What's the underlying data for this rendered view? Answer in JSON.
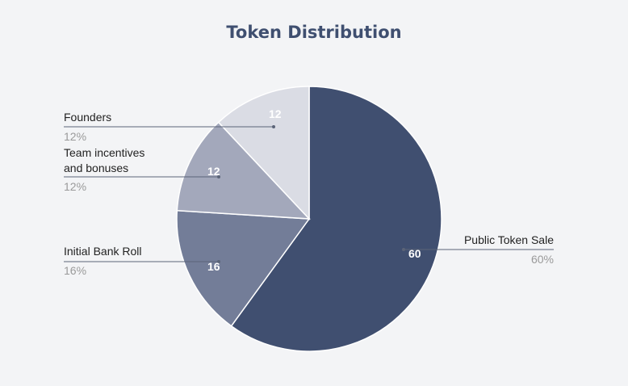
{
  "chart_data": {
    "type": "pie",
    "title": "Token Distribution",
    "start_angle_deg": 0,
    "direction": "clockwise",
    "slices": [
      {
        "label": "Public Token Sale",
        "value": 60,
        "value_text": "60",
        "percent_text": "60%",
        "color": "#404f70"
      },
      {
        "label": "Initial Bank Roll",
        "value": 16,
        "value_text": "16",
        "percent_text": "16%",
        "color": "#737d98"
      },
      {
        "label": "Team incentives and bonuses",
        "label_lines": [
          "Team incentives",
          "and bonuses"
        ],
        "value": 12,
        "value_text": "12",
        "percent_text": "12%",
        "color": "#a3a8bb"
      },
      {
        "label": "Founders",
        "value": 12,
        "value_text": "12",
        "percent_text": "12%",
        "color": "#dadce4"
      }
    ]
  }
}
